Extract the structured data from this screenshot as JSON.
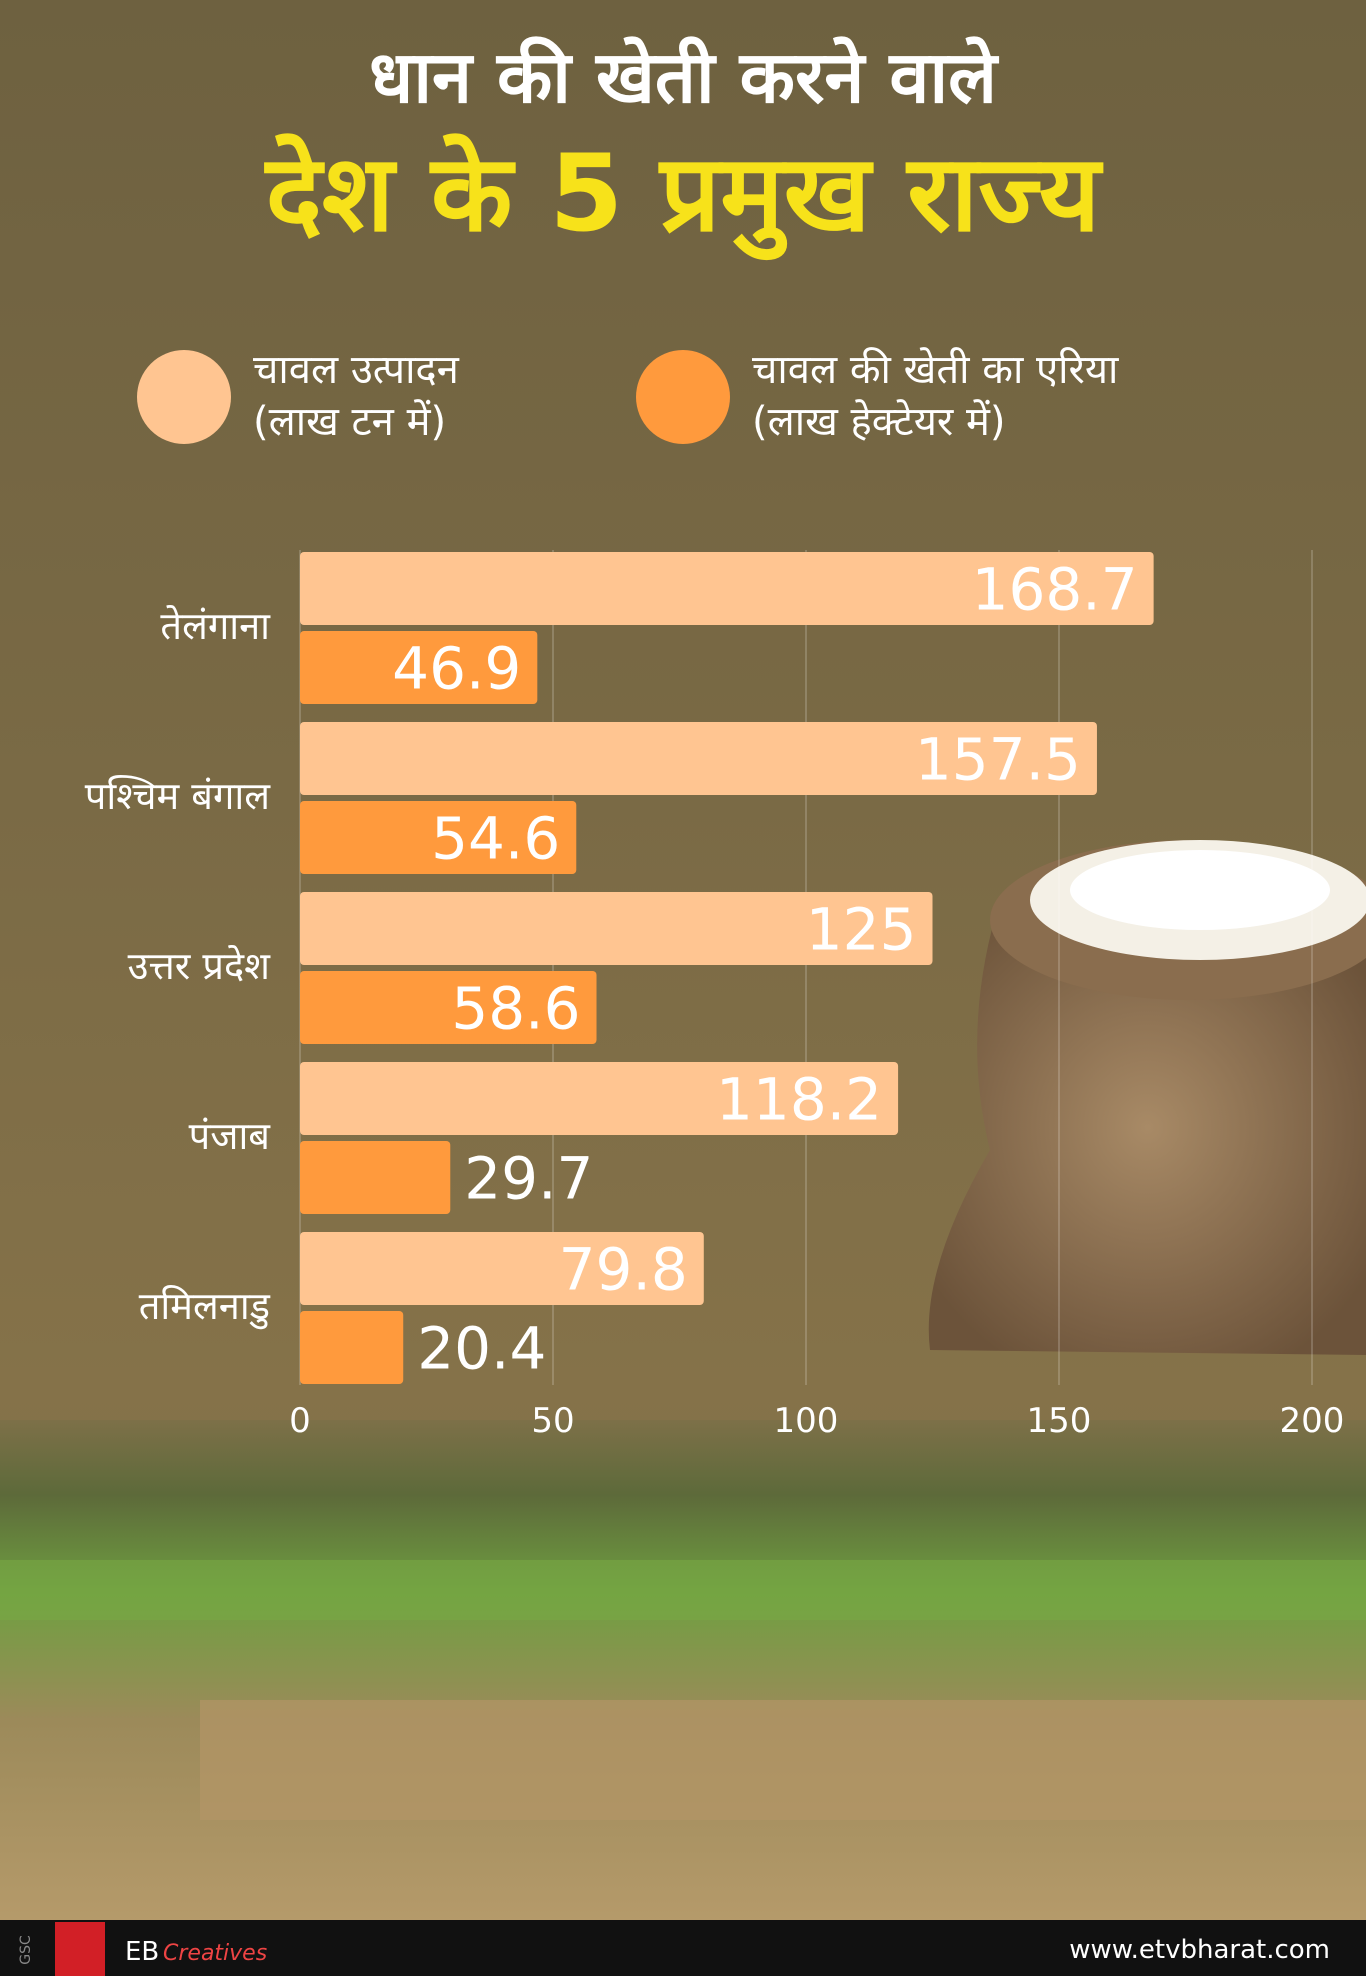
{
  "chart_data": {
    "type": "bar",
    "orientation": "horizontal",
    "title": "धान की खेती करने वाले",
    "subtitle": "देश के 5 प्रमुख राज्य",
    "categories": [
      "तेलंगाना",
      "पश्चिम बंगाल",
      "उत्तर प्रदेश",
      "पंजाब",
      "तमिलनाडु"
    ],
    "series": [
      {
        "name": "चावल उत्पादन\n(लाख टन में)",
        "color": "#ffc591",
        "values": [
          168.7,
          157.5,
          125,
          118.2,
          79.8
        ]
      },
      {
        "name": "चावल की खेती का एरिया\n(लाख हेक्टेयर में)",
        "color": "#ff9a3d",
        "values": [
          46.9,
          54.6,
          58.6,
          29.7,
          20.4
        ]
      }
    ],
    "xlim": [
      0,
      200
    ],
    "xticks": [
      0,
      50,
      100,
      150,
      200
    ],
    "grid": true
  },
  "footer": {
    "site": "www.etvbharat.com",
    "brand": "EB",
    "brand_script": "Creatives",
    "code": "GSC"
  }
}
